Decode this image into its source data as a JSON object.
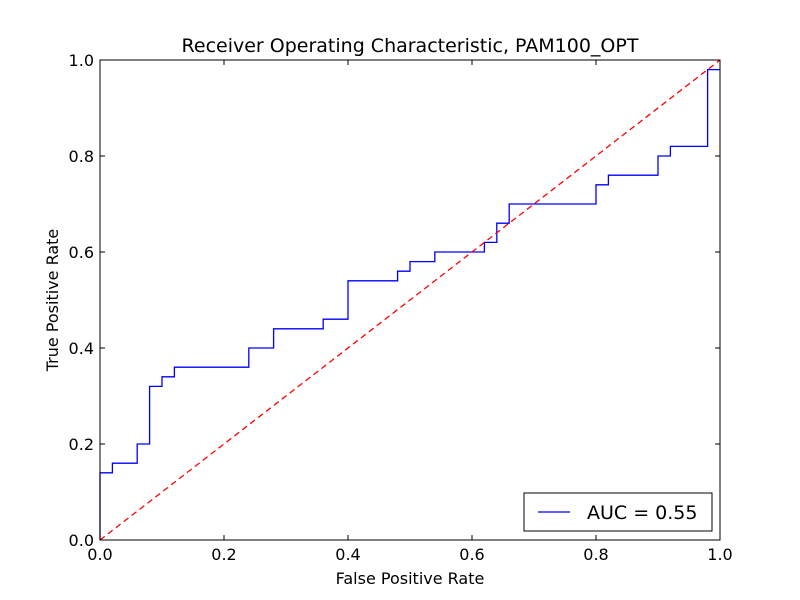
{
  "chart_data": {
    "type": "line",
    "title": "Receiver Operating Characteristic, PAM100_OPT",
    "xlabel": "False Positive Rate",
    "ylabel": "True Positive Rate",
    "xlim": [
      0.0,
      1.0
    ],
    "ylim": [
      0.0,
      1.0
    ],
    "xticks": [
      "0.0",
      "0.2",
      "0.4",
      "0.6",
      "0.8",
      "1.0"
    ],
    "yticks": [
      "0.0",
      "0.2",
      "0.4",
      "0.6",
      "0.8",
      "1.0"
    ],
    "grid": false,
    "legend_position": "lower-right",
    "series": [
      {
        "name": "AUC = 0.55",
        "color": "#0000ff",
        "linestyle": "solid",
        "step": true,
        "x": [
          0.0,
          0.0,
          0.02,
          0.02,
          0.06,
          0.06,
          0.08,
          0.08,
          0.1,
          0.1,
          0.12,
          0.12,
          0.24,
          0.24,
          0.28,
          0.28,
          0.36,
          0.36,
          0.4,
          0.4,
          0.48,
          0.48,
          0.5,
          0.5,
          0.54,
          0.54,
          0.62,
          0.62,
          0.64,
          0.64,
          0.66,
          0.66,
          0.8,
          0.8,
          0.82,
          0.82,
          0.9,
          0.9,
          0.92,
          0.92,
          0.98,
          0.98,
          1.0
        ],
        "y": [
          0.0,
          0.14,
          0.14,
          0.16,
          0.16,
          0.2,
          0.2,
          0.32,
          0.32,
          0.34,
          0.34,
          0.36,
          0.36,
          0.4,
          0.4,
          0.44,
          0.44,
          0.46,
          0.46,
          0.54,
          0.54,
          0.56,
          0.56,
          0.58,
          0.58,
          0.6,
          0.6,
          0.62,
          0.62,
          0.66,
          0.66,
          0.7,
          0.7,
          0.74,
          0.74,
          0.76,
          0.76,
          0.8,
          0.8,
          0.82,
          0.82,
          0.98,
          0.98
        ]
      },
      {
        "name": "",
        "color": "#ff0000",
        "linestyle": "dashed",
        "x": [
          0.0,
          1.0
        ],
        "y": [
          0.0,
          1.0
        ]
      }
    ]
  }
}
